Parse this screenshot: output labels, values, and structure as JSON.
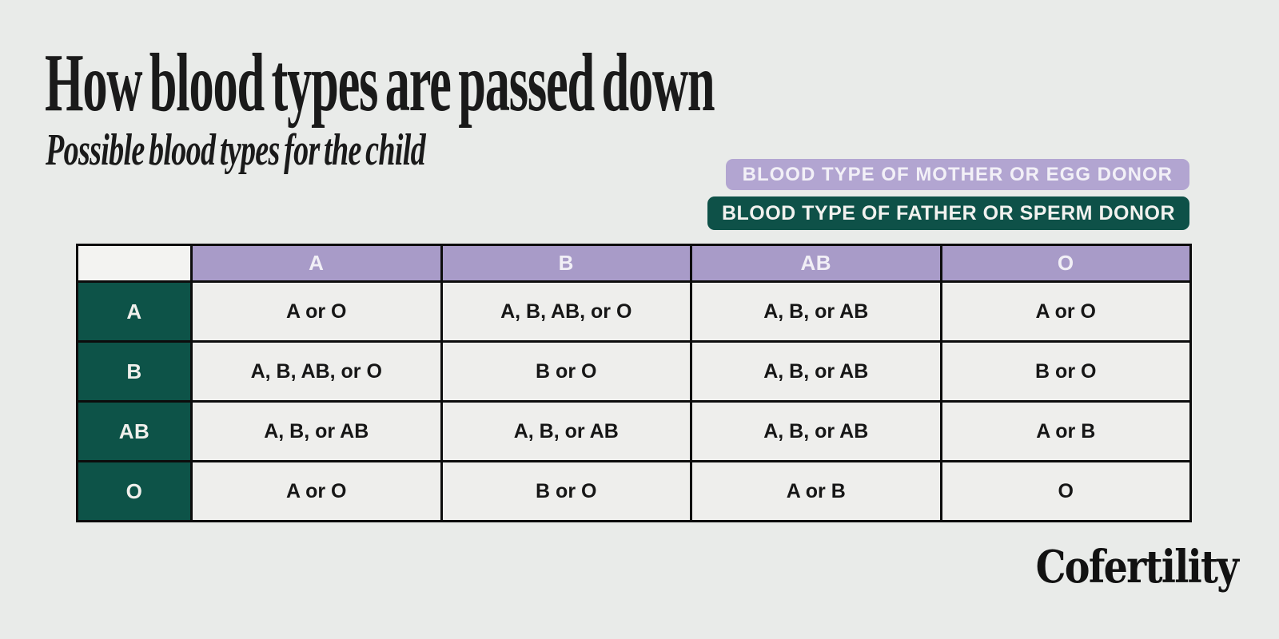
{
  "header": {
    "title": "How blood types are passed down",
    "subtitle": "Possible blood types for the child"
  },
  "legend": {
    "mother_label": "BLOOD TYPE OF MOTHER OR EGG DONOR",
    "father_label": "BLOOD TYPE OF FATHER OR SPERM DONOR"
  },
  "logo": {
    "text": "Cofertility"
  },
  "colors": {
    "background": "#e9ebe9",
    "mother_purple_badge": "#b2a5d1",
    "column_header_purple": "#a89bc8",
    "father_green": "#0e5148",
    "row_header_green": "#0d5348",
    "cell_background": "#eeeeec",
    "table_border": "#0c0c0c"
  },
  "chart_data": {
    "type": "table",
    "title": "How blood types are passed down",
    "subtitle": "Possible blood types for the child",
    "column_group_label": "BLOOD TYPE OF MOTHER OR EGG DONOR",
    "row_group_label": "BLOOD TYPE OF FATHER OR SPERM DONOR",
    "columns": [
      "A",
      "B",
      "AB",
      "O"
    ],
    "rows": [
      "A",
      "B",
      "AB",
      "O"
    ],
    "cells": [
      [
        "A or O",
        "A, B, AB, or O",
        "A, B, or AB",
        "A or O"
      ],
      [
        "A, B, AB, or O",
        "B or O",
        "A, B, or AB",
        "B or O"
      ],
      [
        "A, B, or AB",
        "A, B, or AB",
        "A, B, or AB",
        "A or B"
      ],
      [
        "A or O",
        "B or O",
        "A or B",
        "O"
      ]
    ]
  }
}
